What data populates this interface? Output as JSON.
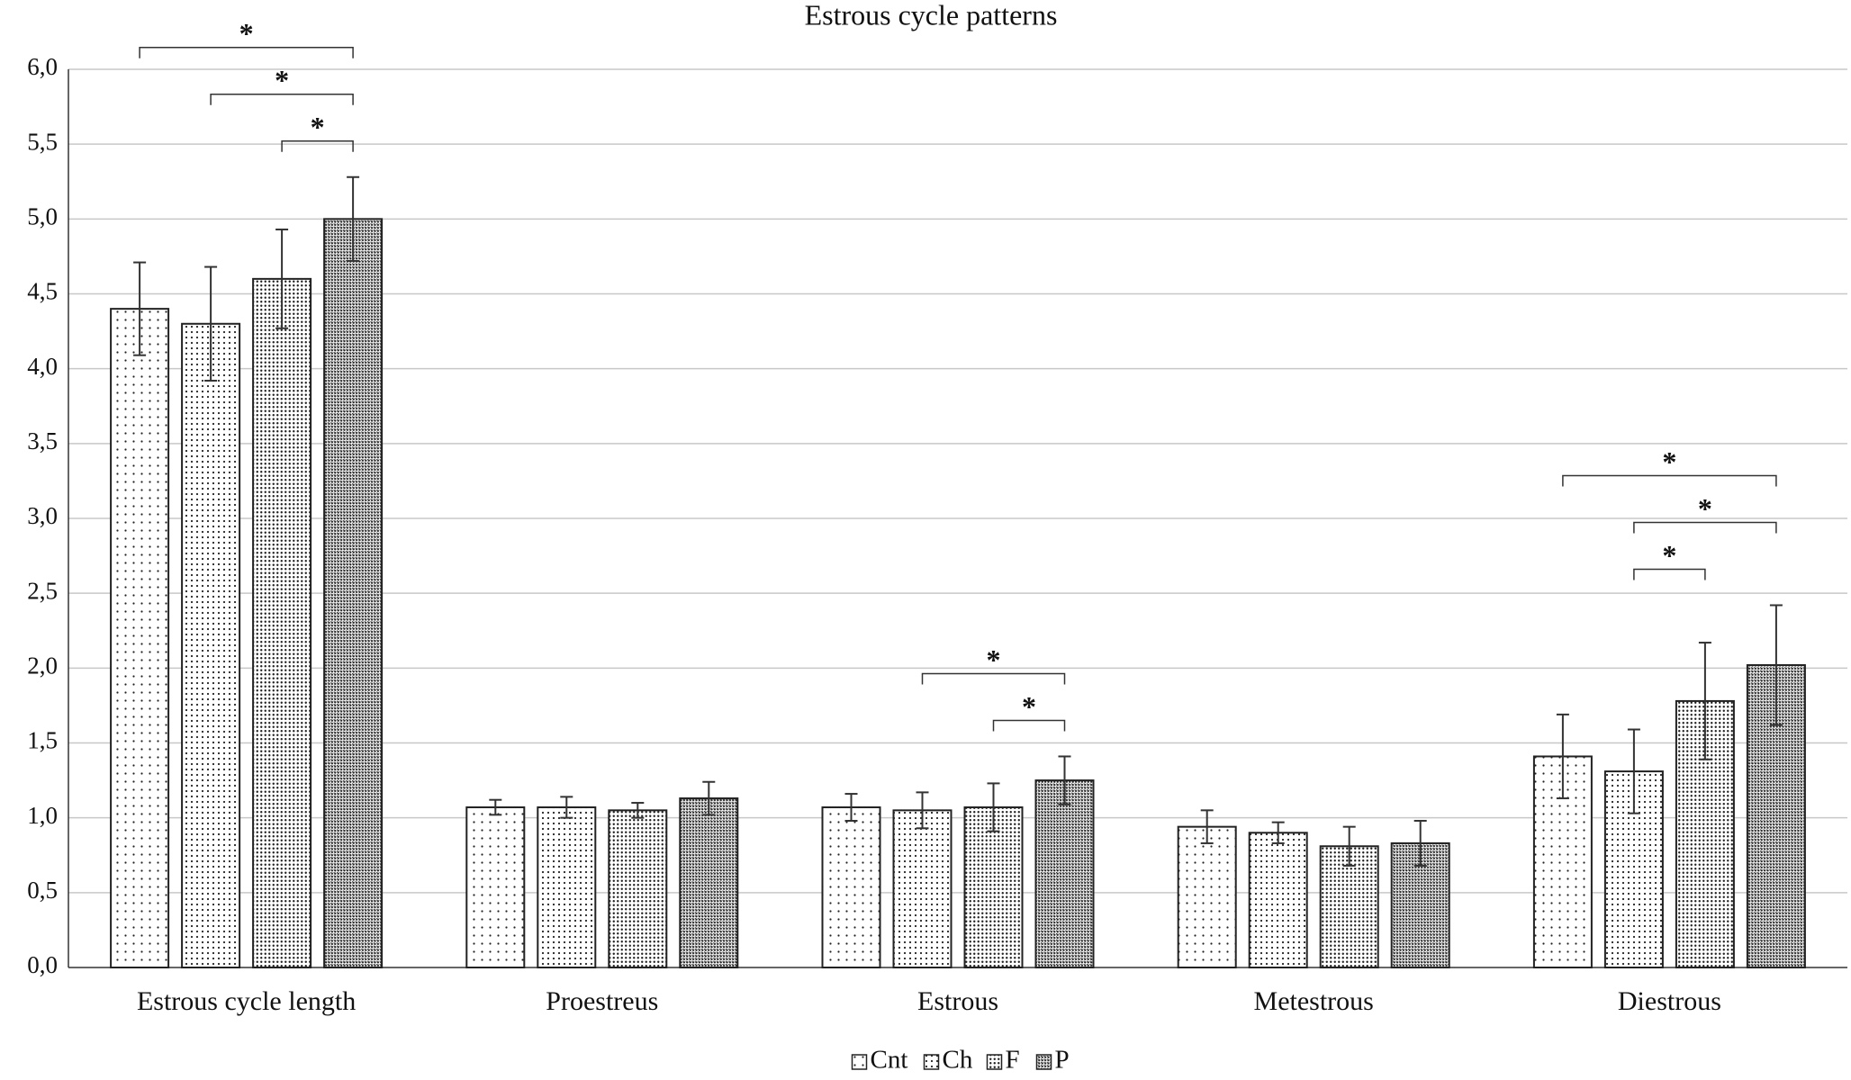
{
  "chart_data": {
    "type": "bar",
    "title": "Estrous cycle patterns",
    "categories": [
      "Estrous cycle length",
      "Proestreus",
      "Estrous",
      "Metestrous",
      "Diestrous"
    ],
    "series": [
      {
        "name": "Cnt",
        "color": "#222222",
        "values": [
          4.4,
          1.07,
          1.07,
          0.94,
          1.41
        ],
        "errors": [
          0.31,
          0.05,
          0.09,
          0.11,
          0.28
        ]
      },
      {
        "name": "Ch",
        "color": "#222222",
        "values": [
          4.3,
          1.07,
          1.05,
          0.9,
          1.31
        ],
        "errors": [
          0.38,
          0.07,
          0.12,
          0.07,
          0.28
        ]
      },
      {
        "name": "F",
        "color": "#222222",
        "values": [
          4.6,
          1.05,
          1.07,
          0.81,
          1.78
        ],
        "errors": [
          0.33,
          0.05,
          0.16,
          0.13,
          0.39
        ]
      },
      {
        "name": "P",
        "color": "#222222",
        "values": [
          5.0,
          1.13,
          1.25,
          0.83,
          2.02
        ],
        "errors": [
          0.28,
          0.11,
          0.16,
          0.15,
          0.4
        ]
      }
    ],
    "ylim": [
      0,
      6
    ],
    "yticks": [
      {
        "value": 0,
        "label": "0,0"
      },
      {
        "value": 0.5,
        "label": "0,5"
      },
      {
        "value": 1,
        "label": "1,0"
      },
      {
        "value": 1.5,
        "label": "1,5"
      },
      {
        "value": 2,
        "label": "2,0"
      },
      {
        "value": 2.5,
        "label": "2,5"
      },
      {
        "value": 3,
        "label": "3,0"
      },
      {
        "value": 3.5,
        "label": "3,5"
      },
      {
        "value": 4,
        "label": "4,0"
      },
      {
        "value": 4.5,
        "label": "4,5"
      },
      {
        "value": 5,
        "label": "5,0"
      },
      {
        "value": 5.5,
        "label": "5,5"
      },
      {
        "value": 6,
        "label": "6,0"
      }
    ],
    "grid": true,
    "legend": "bottom",
    "significance": [
      {
        "category": "Estrous cycle length",
        "pair": [
          "F",
          "P"
        ],
        "label": "*"
      },
      {
        "category": "Estrous cycle length",
        "pair": [
          "Ch",
          "P"
        ],
        "label": "*"
      },
      {
        "category": "Estrous cycle length",
        "pair": [
          "Cnt",
          "P"
        ],
        "label": "*"
      },
      {
        "category": "Estrous",
        "pair": [
          "F",
          "P"
        ],
        "label": "*"
      },
      {
        "category": "Estrous",
        "pair": [
          "Ch",
          "P"
        ],
        "label": "*"
      },
      {
        "category": "Diestrous",
        "pair": [
          "Ch",
          "F"
        ],
        "label": "*"
      },
      {
        "category": "Diestrous",
        "pair": [
          "Ch",
          "P"
        ],
        "label": "*"
      },
      {
        "category": "Diestrous",
        "pair": [
          "Cnt",
          "P"
        ],
        "label": "*"
      }
    ]
  }
}
